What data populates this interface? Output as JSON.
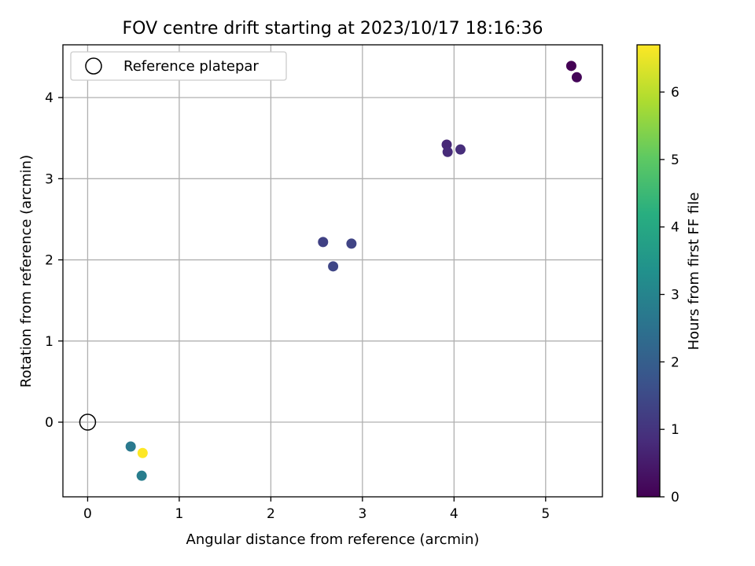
{
  "chart_data": {
    "type": "scatter",
    "title": "FOV centre drift starting at 2023/10/17 18:16:36",
    "xlabel": "Angular distance from reference (arcmin)",
    "ylabel": "Rotation from reference (arcmin)",
    "xlim": [
      -0.27,
      5.62
    ],
    "ylim": [
      -0.92,
      4.65
    ],
    "xticks": [
      0,
      1,
      2,
      3,
      4,
      5
    ],
    "yticks": [
      0,
      1,
      2,
      3,
      4
    ],
    "grid": true,
    "legend": {
      "position": "top-left",
      "entries": [
        "Reference platepar"
      ]
    },
    "reference_point": {
      "x": 0,
      "y": 0
    },
    "colorbar": {
      "label": "Hours from first FF file",
      "range": [
        0,
        6.7
      ],
      "ticks": [
        0,
        1,
        2,
        3,
        4,
        5,
        6
      ],
      "colormap": "viridis"
    },
    "points": [
      {
        "x": 5.28,
        "y": 4.39,
        "c": 0.0
      },
      {
        "x": 5.34,
        "y": 4.25,
        "c": 0.08
      },
      {
        "x": 3.92,
        "y": 3.42,
        "c": 0.75
      },
      {
        "x": 3.93,
        "y": 3.33,
        "c": 0.8
      },
      {
        "x": 4.07,
        "y": 3.36,
        "c": 0.85
      },
      {
        "x": 2.57,
        "y": 2.22,
        "c": 1.3
      },
      {
        "x": 2.88,
        "y": 2.2,
        "c": 1.35
      },
      {
        "x": 2.68,
        "y": 1.92,
        "c": 1.4
      },
      {
        "x": 0.47,
        "y": -0.3,
        "c": 2.7
      },
      {
        "x": 0.59,
        "y": -0.66,
        "c": 2.8
      },
      {
        "x": 0.6,
        "y": -0.38,
        "c": 6.7
      }
    ]
  }
}
